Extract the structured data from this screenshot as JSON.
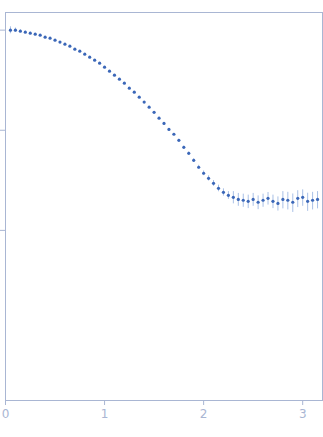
{
  "chart_data": {
    "type": "scatter",
    "marker": "circle",
    "color": "#3b67b8",
    "x": [
      0.05,
      0.1,
      0.15,
      0.2,
      0.25,
      0.3,
      0.35,
      0.4,
      0.45,
      0.5,
      0.55,
      0.6,
      0.65,
      0.7,
      0.75,
      0.8,
      0.85,
      0.9,
      0.95,
      1.0,
      1.05,
      1.1,
      1.15,
      1.2,
      1.25,
      1.3,
      1.35,
      1.4,
      1.45,
      1.5,
      1.55,
      1.6,
      1.65,
      1.7,
      1.75,
      1.8,
      1.85,
      1.9,
      1.95,
      2.0,
      2.05,
      2.1,
      2.15,
      2.2,
      2.25,
      2.3,
      2.35,
      2.4,
      2.45,
      2.5,
      2.55,
      2.6,
      2.65,
      2.7,
      2.75,
      2.8,
      2.85,
      2.9,
      2.95,
      3.0,
      3.05,
      3.1,
      3.15
    ],
    "values": [
      1.0,
      1.0,
      0.977,
      0.955,
      0.933,
      0.912,
      0.891,
      0.851,
      0.832,
      0.794,
      0.759,
      0.724,
      0.692,
      0.646,
      0.617,
      0.575,
      0.537,
      0.501,
      0.468,
      0.427,
      0.389,
      0.355,
      0.324,
      0.295,
      0.263,
      0.24,
      0.214,
      0.191,
      0.17,
      0.151,
      0.132,
      0.117,
      0.102,
      0.0912,
      0.0794,
      0.0676,
      0.0589,
      0.0501,
      0.0427,
      0.0372,
      0.0331,
      0.0295,
      0.0263,
      0.024,
      0.0224,
      0.0214,
      0.0204,
      0.02,
      0.0195,
      0.0204,
      0.0191,
      0.02,
      0.0209,
      0.0195,
      0.0186,
      0.0204,
      0.02,
      0.0191,
      0.0209,
      0.0214,
      0.0195,
      0.02,
      0.0204
    ],
    "errors": [
      0.08,
      0.05,
      0.03,
      0.02,
      0.02,
      0.015,
      0.015,
      0.012,
      0.012,
      0.01,
      0.01,
      0.01,
      0.009,
      0.009,
      0.008,
      0.008,
      0.007,
      0.007,
      0.006,
      0.006,
      0.005,
      0.005,
      0.005,
      0.004,
      0.004,
      0.004,
      0.003,
      0.003,
      0.003,
      0.003,
      0.003,
      0.002,
      0.002,
      0.002,
      0.002,
      0.002,
      0.002,
      0.002,
      0.002,
      0.002,
      0.002,
      0.002,
      0.002,
      0.002,
      0.002,
      0.003,
      0.003,
      0.003,
      0.003,
      0.003,
      0.003,
      0.003,
      0.003,
      0.003,
      0.003,
      0.004,
      0.004,
      0.004,
      0.004,
      0.004,
      0.004,
      0.004,
      0.004
    ],
    "xlim": [
      0,
      3.2
    ],
    "xticks": [
      0,
      1,
      2,
      3
    ],
    "ylim": [
      0.0002,
      1.5
    ],
    "yticks": [
      0.01,
      0.1,
      1
    ],
    "log": "y",
    "grid": false,
    "tick_labels": "x"
  }
}
